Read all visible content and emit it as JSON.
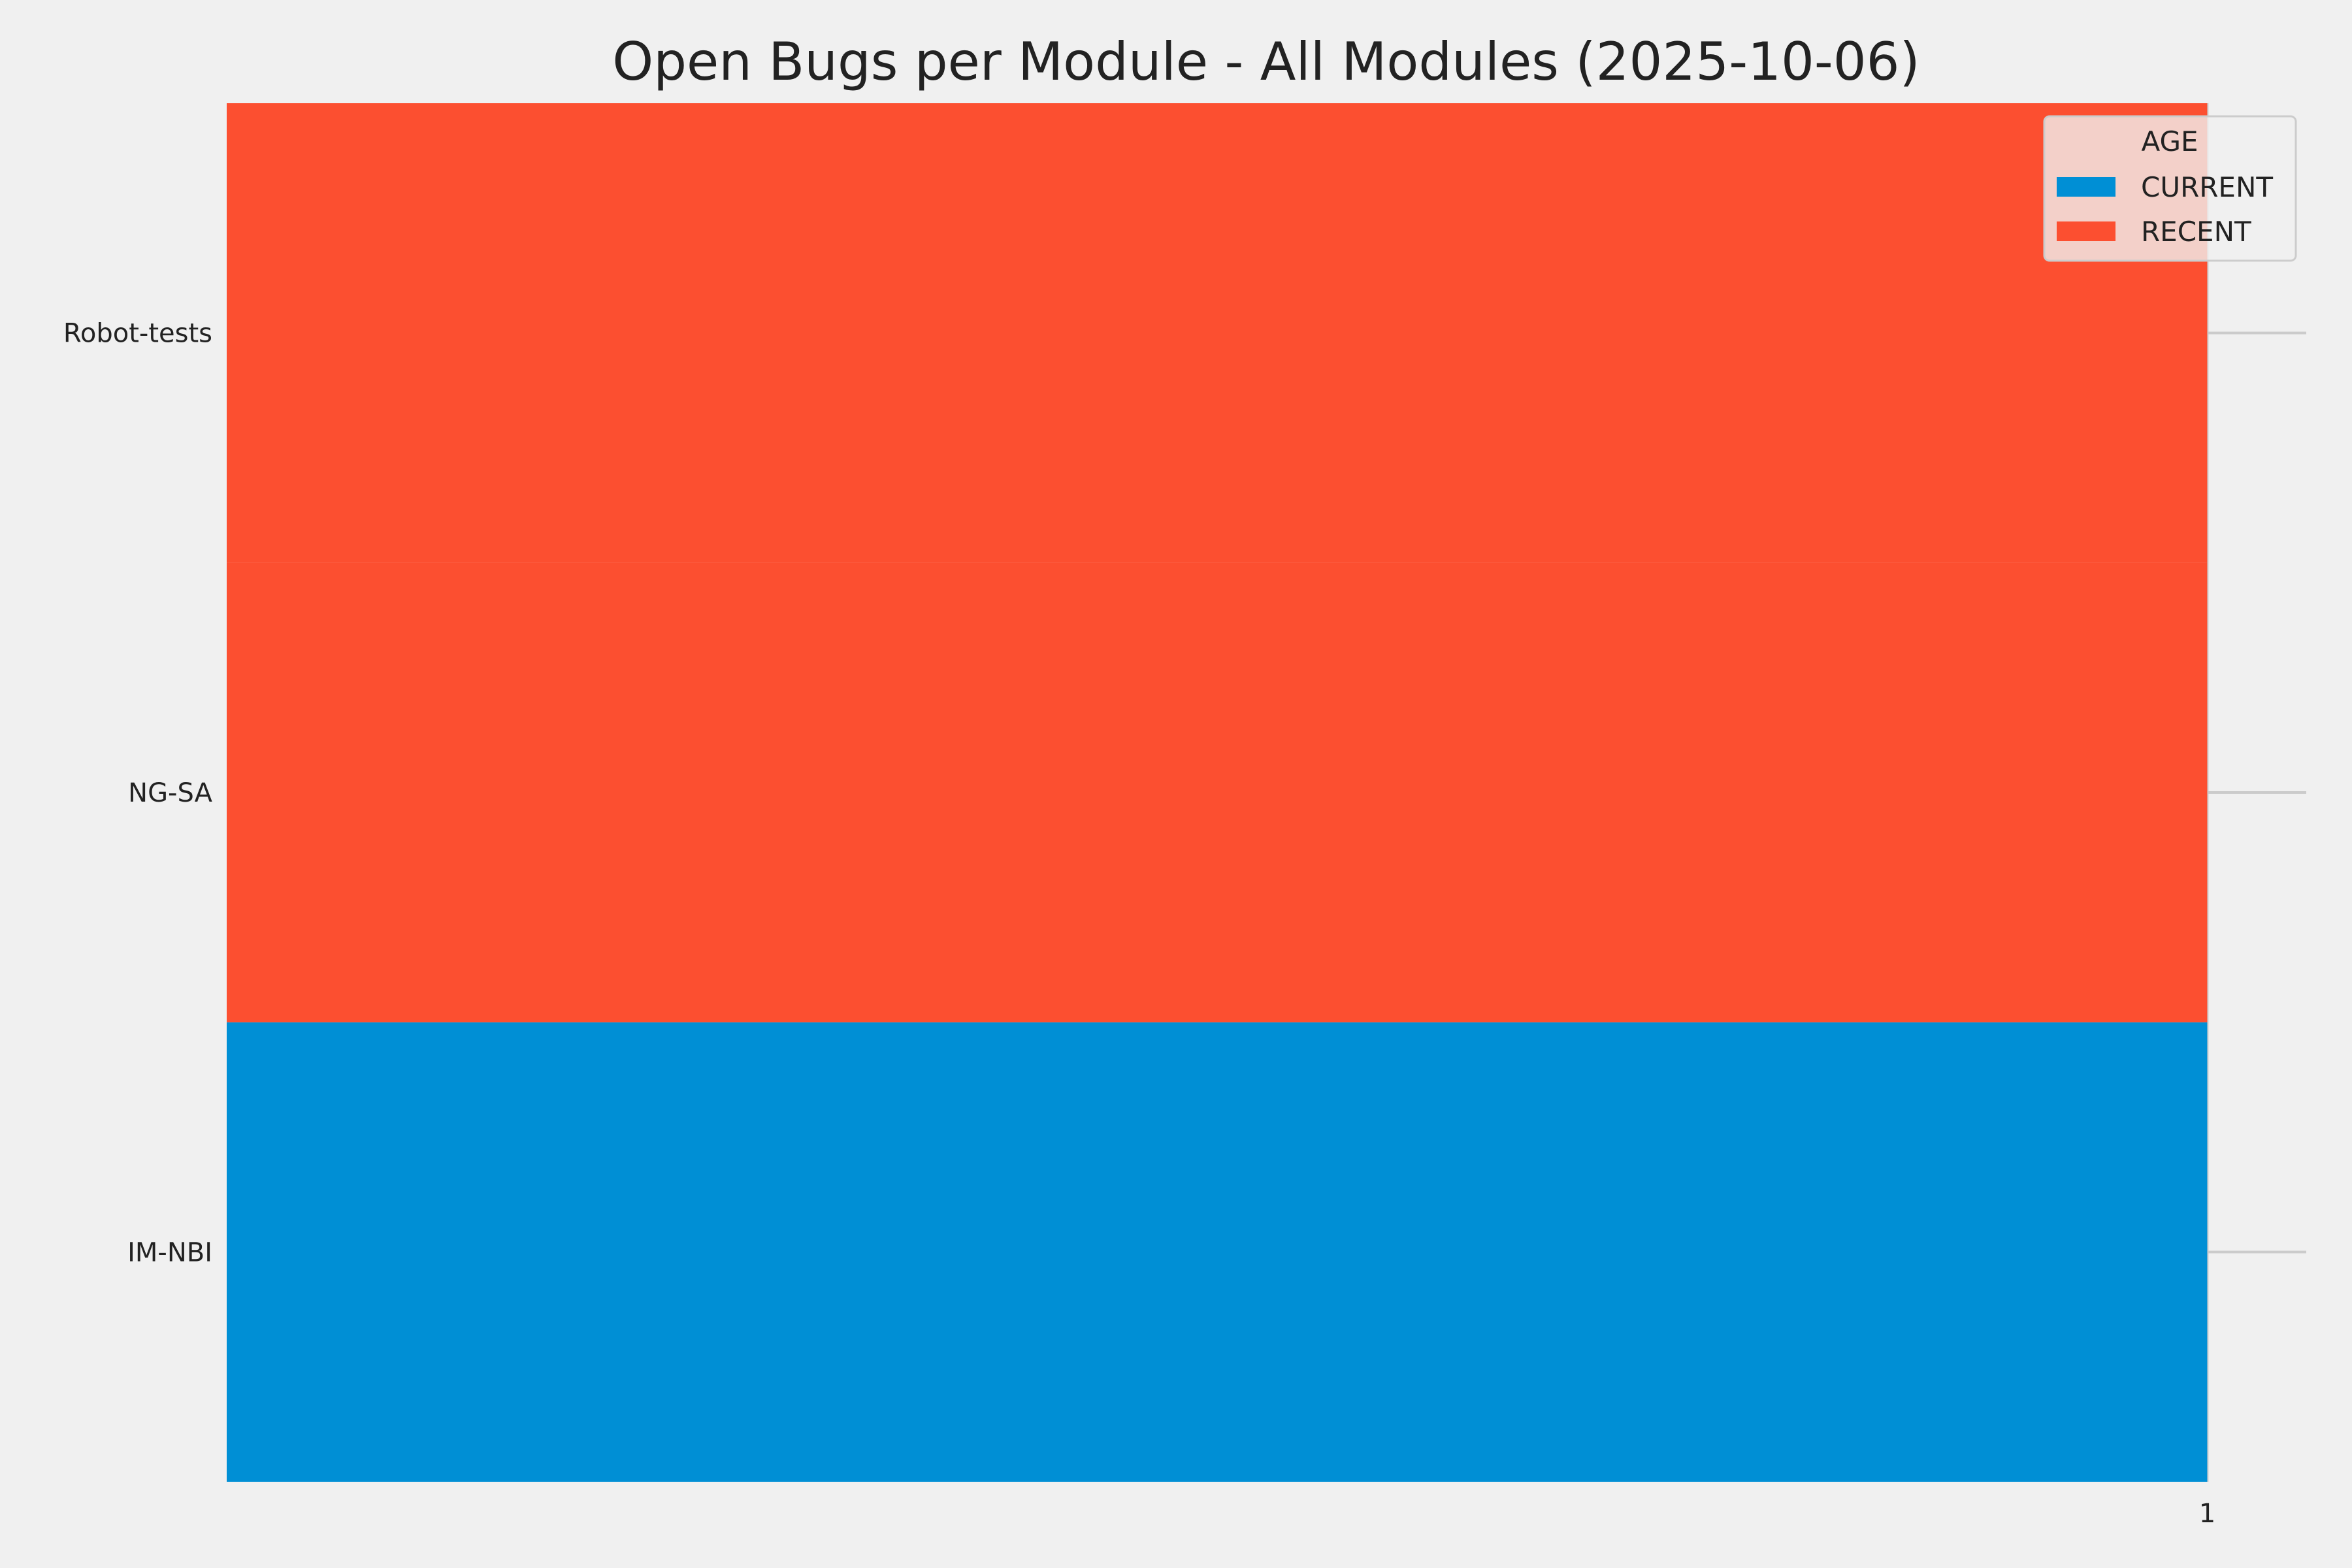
{
  "chart_data": {
    "type": "bar",
    "orientation": "horizontal",
    "stacked": true,
    "title": "Open Bugs per Module - All Modules (2025-10-06)",
    "xlabel": "",
    "ylabel": "",
    "categories": [
      "IM-NBI",
      "NG-SA",
      "Robot-tests"
    ],
    "series": [
      {
        "name": "CURRENT",
        "color": "#008fd5",
        "values": [
          1,
          0,
          0
        ]
      },
      {
        "name": "RECENT",
        "color": "#fc4f30",
        "values": [
          0,
          1,
          1
        ]
      }
    ],
    "x_ticks": [
      "1"
    ],
    "x_tick_values": [
      1
    ],
    "xlim": [
      0,
      1.05
    ],
    "ylim": [
      -0.5,
      2.5
    ],
    "grid": true,
    "legend": {
      "title": "AGE",
      "placement": "top-right",
      "entries": [
        "CURRENT",
        "RECENT"
      ]
    },
    "background": "#f0f0f0",
    "grid_color": "#cbcbcb"
  }
}
